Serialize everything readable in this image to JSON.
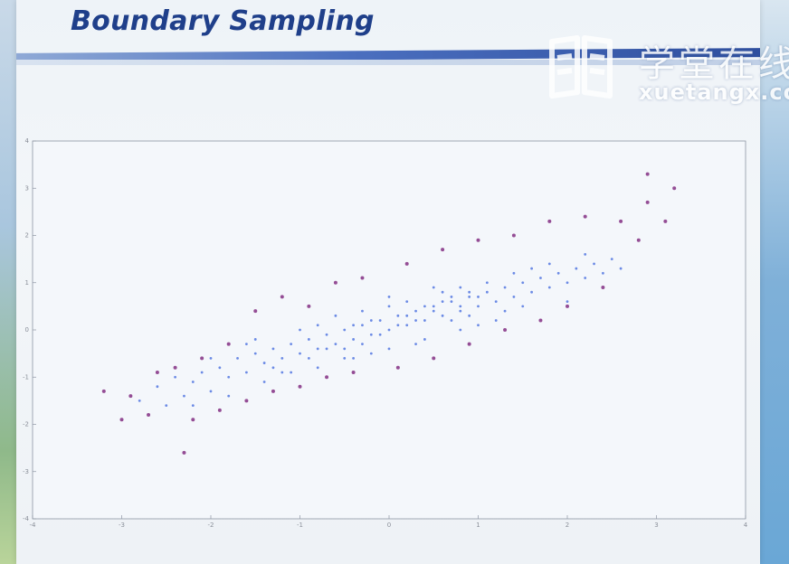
{
  "slide": {
    "title": "Boundary Sampling"
  },
  "watermark": {
    "text_cn": "学堂在线",
    "text_en": "xuetangx.com",
    "logo": "xuetangx-logo-icon"
  },
  "colors": {
    "title": "#1f3f8a",
    "core_points": "#4a6fe0",
    "boundary_points": "#8a3a8a"
  },
  "chart_data": {
    "type": "scatter",
    "title": "",
    "xlabel": "",
    "ylabel": "",
    "xlim": [
      -4,
      4
    ],
    "ylim": [
      -4,
      4
    ],
    "xticks": [
      -4,
      -3,
      -2,
      -1,
      0,
      1,
      2,
      3,
      4
    ],
    "yticks": [
      -4,
      -3,
      -2,
      -1,
      0,
      1,
      2,
      3,
      4
    ],
    "grid": false,
    "legend": "none",
    "series": [
      {
        "color": "#4a6fe0",
        "points": [
          [
            -2.8,
            -1.5
          ],
          [
            -2.6,
            -1.2
          ],
          [
            -2.5,
            -1.6
          ],
          [
            -2.4,
            -1.0
          ],
          [
            -2.3,
            -1.4
          ],
          [
            -2.2,
            -1.1
          ],
          [
            -2.1,
            -0.9
          ],
          [
            -2.0,
            -1.3
          ],
          [
            -1.9,
            -0.8
          ],
          [
            -1.8,
            -1.0
          ],
          [
            -1.7,
            -0.6
          ],
          [
            -1.6,
            -0.9
          ],
          [
            -1.5,
            -0.5
          ],
          [
            -1.4,
            -0.7
          ],
          [
            -1.3,
            -0.4
          ],
          [
            -1.2,
            -0.6
          ],
          [
            -1.1,
            -0.3
          ],
          [
            -1.0,
            -0.5
          ],
          [
            -0.9,
            -0.2
          ],
          [
            -0.8,
            -0.4
          ],
          [
            -0.7,
            -0.1
          ],
          [
            -0.6,
            -0.3
          ],
          [
            -0.5,
            0.0
          ],
          [
            -0.4,
            -0.2
          ],
          [
            -0.3,
            0.1
          ],
          [
            -0.2,
            -0.1
          ],
          [
            -0.1,
            0.2
          ],
          [
            0.0,
            0.0
          ],
          [
            0.1,
            0.3
          ],
          [
            0.2,
            0.1
          ],
          [
            0.3,
            0.4
          ],
          [
            0.4,
            0.2
          ],
          [
            0.5,
            0.5
          ],
          [
            0.6,
            0.3
          ],
          [
            0.7,
            0.6
          ],
          [
            0.8,
            0.4
          ],
          [
            0.9,
            0.7
          ],
          [
            1.0,
            0.5
          ],
          [
            1.1,
            0.8
          ],
          [
            1.2,
            0.6
          ],
          [
            1.3,
            0.9
          ],
          [
            1.4,
            0.7
          ],
          [
            1.5,
            1.0
          ],
          [
            1.6,
            0.8
          ],
          [
            1.7,
            1.1
          ],
          [
            1.8,
            0.9
          ],
          [
            1.9,
            1.2
          ],
          [
            2.0,
            1.0
          ],
          [
            2.1,
            1.3
          ],
          [
            2.2,
            1.1
          ],
          [
            2.3,
            1.4
          ],
          [
            2.4,
            1.2
          ],
          [
            2.5,
            1.5
          ],
          [
            2.6,
            1.3
          ],
          [
            -1.6,
            -0.3
          ],
          [
            -1.2,
            -0.9
          ],
          [
            -0.8,
            0.1
          ],
          [
            -0.4,
            -0.6
          ],
          [
            0.0,
            0.5
          ],
          [
            0.4,
            -0.2
          ],
          [
            0.8,
            0.9
          ],
          [
            1.2,
            0.2
          ],
          [
            1.6,
            1.3
          ],
          [
            2.0,
            0.6
          ],
          [
            -2.0,
            -0.6
          ],
          [
            -0.6,
            0.3
          ],
          [
            0.6,
            0.8
          ],
          [
            1.0,
            0.1
          ],
          [
            -1.0,
            0.0
          ],
          [
            0.2,
            0.6
          ],
          [
            -0.2,
            -0.5
          ],
          [
            1.4,
            1.2
          ],
          [
            -1.4,
            -1.1
          ],
          [
            0.8,
            0.0
          ],
          [
            -0.8,
            -0.8
          ],
          [
            1.8,
            1.4
          ],
          [
            -1.8,
            -1.4
          ],
          [
            0.3,
            -0.3
          ],
          [
            -0.3,
            0.4
          ],
          [
            1.1,
            1.0
          ],
          [
            -1.1,
            -0.9
          ],
          [
            0.5,
            0.9
          ],
          [
            -0.5,
            -0.6
          ],
          [
            1.5,
            0.5
          ],
          [
            -1.5,
            -0.2
          ],
          [
            0.0,
            -0.4
          ],
          [
            0.0,
            0.7
          ],
          [
            0.7,
            0.2
          ],
          [
            -0.7,
            -0.4
          ],
          [
            1.3,
            0.4
          ],
          [
            -1.3,
            -0.8
          ],
          [
            2.2,
            1.6
          ],
          [
            -2.2,
            -1.6
          ],
          [
            0.9,
            0.3
          ],
          [
            -0.9,
            -0.6
          ],
          [
            0.1,
            0.1
          ],
          [
            0.2,
            0.3
          ],
          [
            0.3,
            0.2
          ],
          [
            0.4,
            0.5
          ],
          [
            0.5,
            0.4
          ],
          [
            0.6,
            0.6
          ],
          [
            -0.1,
            -0.1
          ],
          [
            -0.2,
            0.2
          ],
          [
            -0.3,
            -0.3
          ],
          [
            -0.4,
            0.1
          ],
          [
            -0.5,
            -0.4
          ],
          [
            0.7,
            0.7
          ],
          [
            0.8,
            0.5
          ],
          [
            0.9,
            0.8
          ],
          [
            1.0,
            0.7
          ]
        ]
      },
      {
        "color": "#8a3a8a",
        "points": [
          [
            -3.2,
            -1.3
          ],
          [
            -3.0,
            -1.9
          ],
          [
            -2.7,
            -1.8
          ],
          [
            -2.6,
            -0.9
          ],
          [
            -2.4,
            -0.8
          ],
          [
            -2.2,
            -1.9
          ],
          [
            -2.1,
            -0.6
          ],
          [
            -1.9,
            -1.7
          ],
          [
            -1.8,
            -0.3
          ],
          [
            -1.6,
            -1.5
          ],
          [
            -1.5,
            0.4
          ],
          [
            -1.3,
            -1.3
          ],
          [
            -1.2,
            0.7
          ],
          [
            -1.0,
            -1.2
          ],
          [
            -0.9,
            0.5
          ],
          [
            -0.7,
            -1.0
          ],
          [
            -0.6,
            1.0
          ],
          [
            -0.4,
            -0.9
          ],
          [
            -0.3,
            1.1
          ],
          [
            0.1,
            -0.8
          ],
          [
            0.2,
            1.4
          ],
          [
            0.5,
            -0.6
          ],
          [
            0.6,
            1.7
          ],
          [
            0.9,
            -0.3
          ],
          [
            1.0,
            1.9
          ],
          [
            1.3,
            0.0
          ],
          [
            1.4,
            2.0
          ],
          [
            1.7,
            0.2
          ],
          [
            1.8,
            2.3
          ],
          [
            2.0,
            0.5
          ],
          [
            2.2,
            2.4
          ],
          [
            2.4,
            0.9
          ],
          [
            2.6,
            2.3
          ],
          [
            2.8,
            1.9
          ],
          [
            2.9,
            2.7
          ],
          [
            3.1,
            2.3
          ],
          [
            3.2,
            3.0
          ],
          [
            2.9,
            3.3
          ],
          [
            -2.9,
            -1.4
          ],
          [
            -2.3,
            -2.6
          ]
        ]
      }
    ]
  }
}
